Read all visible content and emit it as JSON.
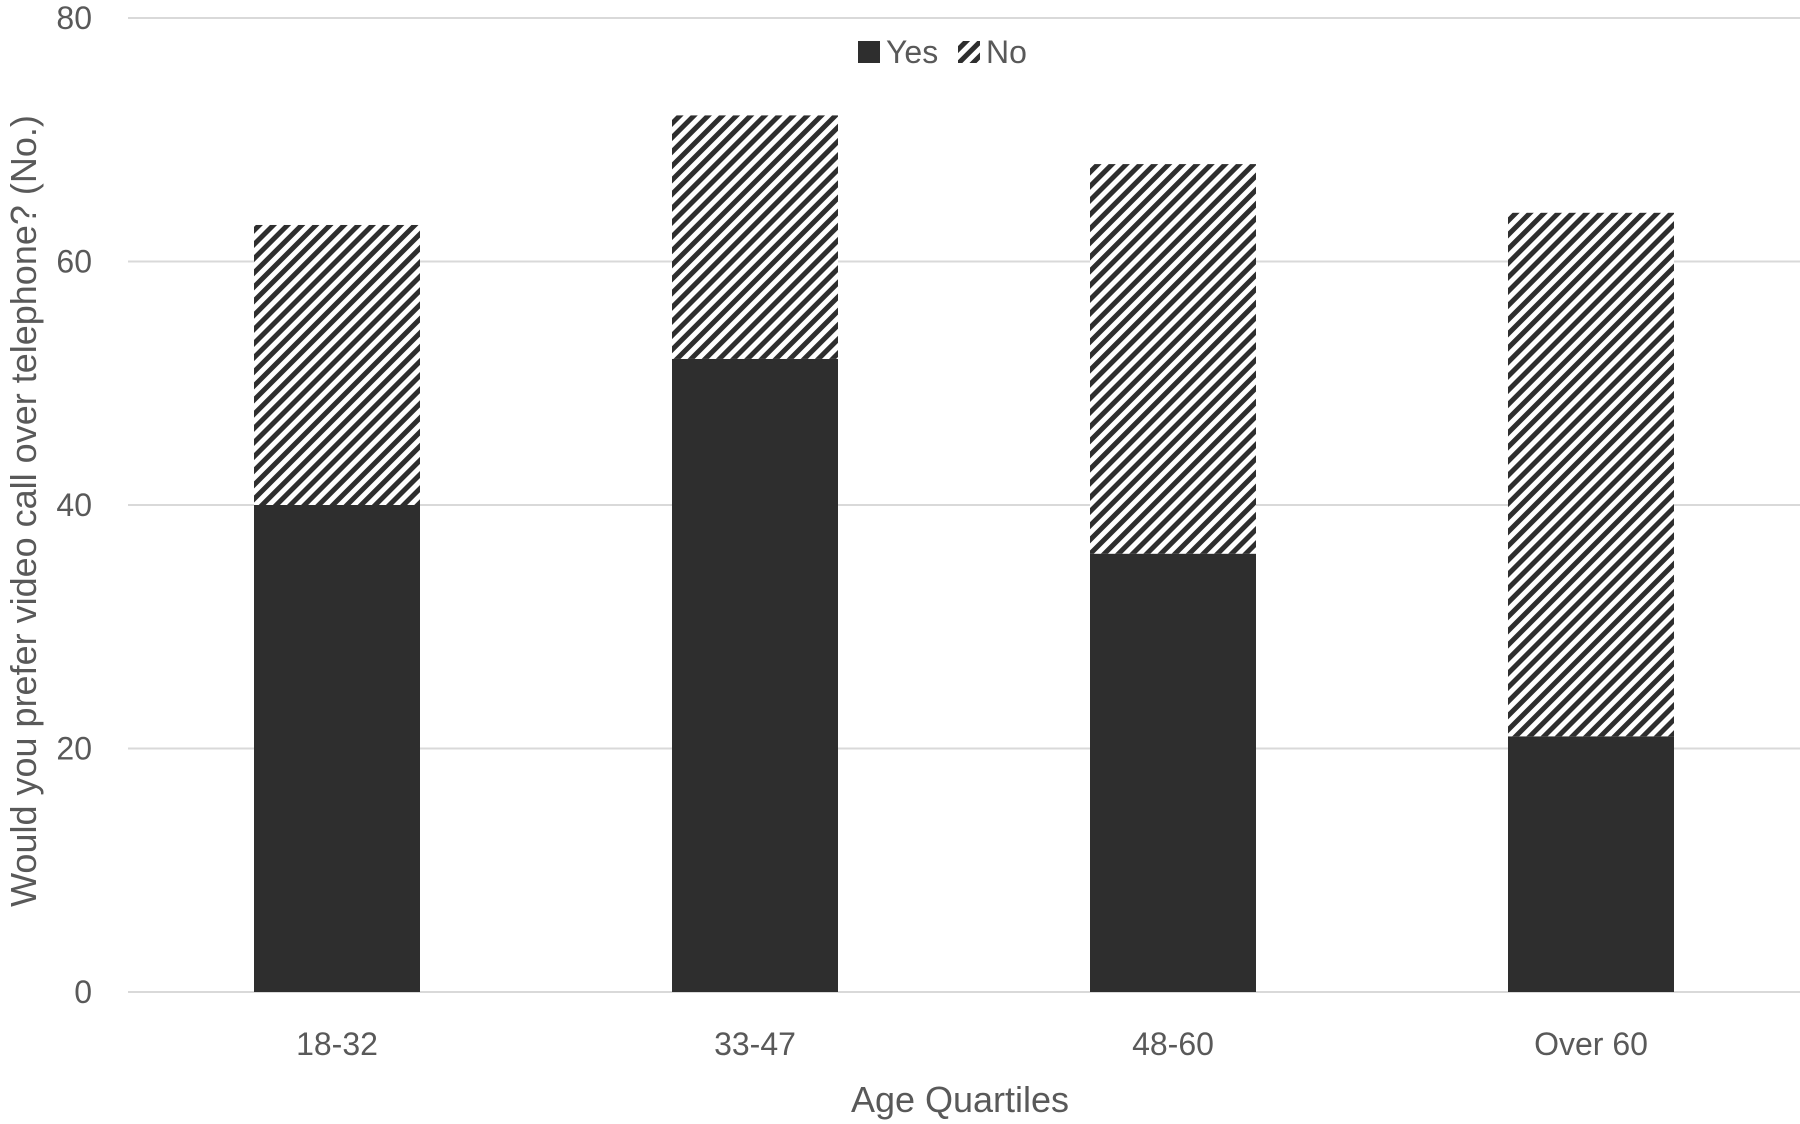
{
  "chart_data": {
    "type": "bar",
    "stacked": true,
    "title": "",
    "xlabel": "Age Quartiles",
    "ylabel": "Would you prefer video call over telephone? (No.)",
    "categories": [
      "18-32",
      "33-47",
      "48-60",
      "Over 60"
    ],
    "series": [
      {
        "name": "Yes",
        "values": [
          40,
          52,
          36,
          21
        ],
        "color": "#2e2e2e",
        "fill": "solid"
      },
      {
        "name": "No",
        "values": [
          23,
          20,
          32,
          43
        ],
        "color": "#2e2e2e",
        "fill": "diagonal-stripes"
      }
    ],
    "ylim": [
      0,
      80
    ],
    "yticks": [
      0,
      20,
      40,
      60,
      80
    ],
    "grid": true,
    "legend_position": "top-center",
    "colors": {
      "grid": "#d9d9d9",
      "text": "#595959",
      "bar": "#2e2e2e",
      "background": "#ffffff"
    }
  }
}
